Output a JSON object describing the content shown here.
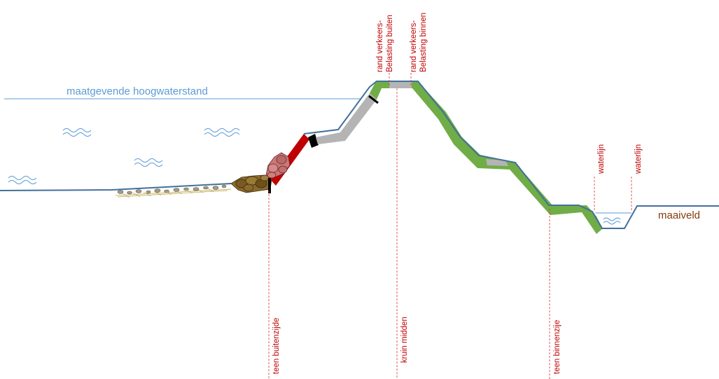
{
  "labels": {
    "water_level": "maatgevende hoogwaterstand",
    "ground_level": "maaiveld",
    "toe_outside": "teen buitenzijde",
    "crest_middle": "kruin midden",
    "toe_inside": "teen binnenzije",
    "traffic_load_outside": [
      "rand verkeers-",
      "Belasting buiten"
    ],
    "traffic_load_inside": [
      "rand verkeers-",
      "Belasting binnen"
    ],
    "waterline_left": "waterlijn",
    "waterline_right": "waterlijn"
  },
  "colors": {
    "water_line": "#5b9bd5",
    "dike_outline": "#41719c",
    "grass": "#70ad47",
    "revetment_grey": "#b4b4b4",
    "asphalt_red": "#c00000",
    "marker_lines": "#e03030",
    "rock_pink": "#c87878",
    "rock_brown": "#8b6a2b",
    "ground_label": "#843c0c"
  },
  "icons": [
    "wave-icon",
    "rock-pile-icon",
    "block-icon"
  ]
}
